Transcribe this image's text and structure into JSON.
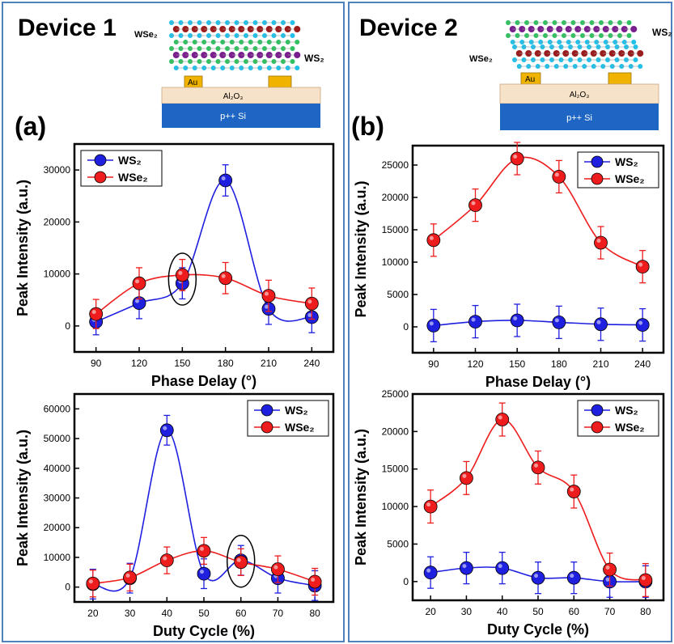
{
  "devices": [
    {
      "title": "Device 1",
      "panel_letter": "(a)",
      "schematic": {
        "top_label": "WSe₂",
        "side_label": "WS₂",
        "contact_label": "Au",
        "dielectric_label": "Al₂O₃",
        "substrate_label": "p++ Si"
      }
    },
    {
      "title": "Device 2",
      "panel_letter": "(b)",
      "schematic": {
        "top_label": "WS₂",
        "side_label": "WSe₂",
        "contact_label": "Au",
        "dielectric_label": "Al₂O₃",
        "substrate_label": "p++ Si"
      }
    }
  ],
  "colors": {
    "ws2": "#1f1fe0",
    "wse2": "#ee1c1c",
    "border": "#4f81bd",
    "substrate": "#1f66c4",
    "dielectric": "#f6e2c8",
    "contact": "#f0b400"
  },
  "chart_data": [
    {
      "id": "a-top",
      "type": "line",
      "xlabel": "Phase Delay (°)",
      "ylabel": "Peak Intensity (a.u.)",
      "x": [
        90,
        120,
        150,
        180,
        210,
        240
      ],
      "xticks": [
        "90",
        "120",
        "150",
        "180",
        "210",
        "240"
      ],
      "xlim": [
        75,
        255
      ],
      "ylim": [
        -5000,
        35000
      ],
      "yticks": [
        0,
        10000,
        20000,
        30000
      ],
      "series": [
        {
          "name": "WS₂",
          "color": "#1f1fe0",
          "values": [
            800,
            4400,
            8200,
            28000,
            3300,
            1700
          ],
          "errors": [
            2500,
            3000,
            3000,
            3000,
            3000,
            3000
          ]
        },
        {
          "name": "WSe₂",
          "color": "#ee1c1c",
          "values": [
            2300,
            8200,
            9800,
            9200,
            5800,
            4300
          ],
          "errors": [
            2800,
            3000,
            3000,
            3000,
            3000,
            3000
          ]
        }
      ],
      "highlight": {
        "x": 150
      },
      "legend": "top-left"
    },
    {
      "id": "a-bottom",
      "type": "line",
      "xlabel": "Duty Cycle (%)",
      "ylabel": "Peak Intensity (a.u.)",
      "x": [
        20,
        30,
        40,
        50,
        60,
        70,
        80
      ],
      "xticks": [
        "20",
        "30",
        "40",
        "50",
        "60",
        "70",
        "80"
      ],
      "xlim": [
        15,
        85
      ],
      "ylim": [
        -5000,
        65000
      ],
      "yticks": [
        0,
        10000,
        20000,
        30000,
        40000,
        50000,
        60000
      ],
      "series": [
        {
          "name": "WS₂",
          "color": "#1f1fe0",
          "values": [
            1000,
            3000,
            52800,
            4500,
            9000,
            3000,
            500
          ],
          "errors": [
            5000,
            5000,
            5000,
            5000,
            5000,
            5000,
            5000
          ]
        },
        {
          "name": "WSe₂",
          "color": "#ee1c1c",
          "values": [
            1200,
            3200,
            9000,
            12200,
            8400,
            6000,
            1800
          ],
          "errors": [
            4500,
            4500,
            4500,
            4500,
            4500,
            4500,
            4500
          ]
        }
      ],
      "highlight": {
        "x": 60
      },
      "legend": "top-right"
    },
    {
      "id": "b-top",
      "type": "line",
      "xlabel": "Phase Delay (°)",
      "ylabel": "Peak Intensity (a.u.)",
      "x": [
        90,
        120,
        150,
        180,
        210,
        240
      ],
      "xticks": [
        "90",
        "120",
        "150",
        "180",
        "210",
        "240"
      ],
      "xlim": [
        75,
        255
      ],
      "ylim": [
        -4000,
        28000
      ],
      "yticks": [
        0,
        5000,
        10000,
        15000,
        20000,
        25000
      ],
      "series": [
        {
          "name": "WS₂",
          "color": "#1f1fe0",
          "values": [
            200,
            800,
            1000,
            700,
            400,
            300
          ],
          "errors": [
            2500,
            2500,
            2500,
            2500,
            2500,
            2500
          ]
        },
        {
          "name": "WSe₂",
          "color": "#ee1c1c",
          "values": [
            13400,
            18800,
            26000,
            23200,
            13000,
            9300
          ],
          "errors": [
            2500,
            2500,
            2500,
            2500,
            2500,
            2500
          ]
        }
      ],
      "legend": "top-right"
    },
    {
      "id": "b-bottom",
      "type": "line",
      "xlabel": "Duty Cycle (%)",
      "ylabel": "Peak Intensity (a.u.)",
      "x": [
        20,
        30,
        40,
        50,
        60,
        70,
        80
      ],
      "xticks": [
        "20",
        "30",
        "40",
        "50",
        "60",
        "70",
        "80"
      ],
      "xlim": [
        15,
        85
      ],
      "ylim": [
        -2500,
        25000
      ],
      "yticks": [
        0,
        5000,
        10000,
        15000,
        20000,
        25000
      ],
      "series": [
        {
          "name": "WS₂",
          "color": "#1f1fe0",
          "values": [
            1200,
            1800,
            1800,
            500,
            500,
            0,
            0
          ],
          "errors": [
            2100,
            2100,
            2100,
            2100,
            2100,
            2100,
            2100
          ]
        },
        {
          "name": "WSe₂",
          "color": "#ee1c1c",
          "values": [
            10000,
            13800,
            21600,
            15200,
            12000,
            1600,
            200
          ],
          "errors": [
            2200,
            2200,
            2200,
            2200,
            2200,
            2200,
            2200
          ]
        }
      ],
      "legend": "top-right"
    }
  ]
}
